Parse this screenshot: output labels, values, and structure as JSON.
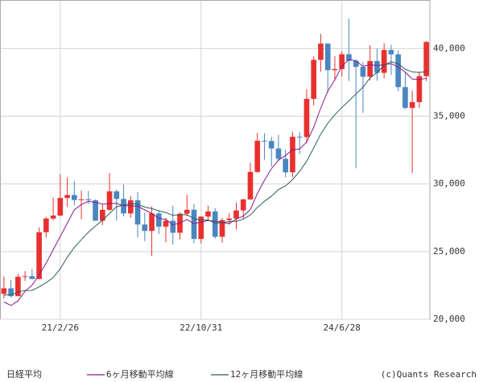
{
  "chart_data": {
    "type": "candlestick",
    "categories": [
      null,
      null,
      null,
      null,
      null,
      null,
      null,
      null,
      "21/2/26",
      null,
      null,
      null,
      null,
      null,
      null,
      null,
      null,
      null,
      null,
      null,
      null,
      null,
      null,
      null,
      null,
      null,
      null,
      null,
      "22/10/31",
      null,
      null,
      null,
      null,
      null,
      null,
      null,
      null,
      null,
      null,
      null,
      null,
      null,
      null,
      null,
      null,
      null,
      null,
      null,
      "24/6/28",
      null,
      null,
      null,
      null,
      null,
      null,
      null,
      null,
      null,
      null,
      null,
      null
    ],
    "series": [
      {
        "name": "日経平均",
        "up_color": "#e8312f",
        "down_color": "#4a86c0",
        "open": [
          21878,
          22288,
          21710,
          23139,
          23185,
          22977,
          26433,
          27444,
          27663,
          28966,
          29178,
          28812,
          28860,
          28791,
          27283,
          28089,
          29452,
          28892,
          27821,
          28791,
          27001,
          26526,
          27821,
          26847,
          27279,
          26393,
          27801,
          28091,
          25937,
          27587,
          27968,
          26094,
          27327,
          27445,
          28041,
          28856,
          30887,
          33189,
          33172,
          32619,
          31857,
          30858,
          33486,
          33464,
          36286,
          39166,
          40369,
          38405,
          38487,
          39583,
          39101,
          38647,
          37919,
          39081,
          38208,
          39894,
          39572,
          37155,
          35617,
          36045,
          37965
        ],
        "high": [
          23178,
          22900,
          23338,
          23559,
          23725,
          26800,
          27568,
          28979,
          30714,
          30485,
          30208,
          29518,
          29480,
          28852,
          28500,
          30795,
          29600,
          29960,
          29121,
          29388,
          27880,
          28338,
          28000,
          27500,
          28389,
          27900,
          29222,
          28500,
          27600,
          28383,
          28200,
          27502,
          27821,
          28624,
          28900,
          31561,
          33772,
          33753,
          33488,
          33634,
          32533,
          33853,
          33853,
          36984,
          39426,
          41088,
          40400,
          39437,
          39794,
          42224,
          39200,
          39000,
          40257,
          40000,
          40398,
          40288,
          39864,
          38220,
          36900,
          38300,
          40550
        ],
        "low": [
          21530,
          21600,
          21700,
          22834,
          22948,
          22948,
          26034,
          27300,
          27600,
          28308,
          28419,
          27385,
          28500,
          27272,
          26954,
          28000,
          27293,
          27600,
          27500,
          26044,
          25775,
          24681,
          26300,
          25688,
          25520,
          25900,
          27600,
          25621,
          25600,
          27300,
          25953,
          25661,
          27000,
          26632,
          27450,
          28830,
          30800,
          31791,
          31275,
          31674,
          30487,
          30500,
          32205,
          33000,
          35800,
          38271,
          36733,
          37617,
          37950,
          37611,
          31156,
          35247,
          37651,
          37626,
          37800,
          38055,
          36857,
          35500,
          30792,
          35600,
          37600
        ],
        "close": [
          22288,
          21710,
          23139,
          23185,
          22977,
          26433,
          27444,
          27663,
          28966,
          29178,
          28812,
          28860,
          28791,
          27283,
          28089,
          29452,
          28892,
          27821,
          28791,
          27001,
          26526,
          27821,
          26847,
          27279,
          26393,
          27801,
          28091,
          25937,
          27587,
          27968,
          26094,
          27327,
          27445,
          28041,
          28856,
          30887,
          33189,
          33172,
          32619,
          31857,
          30858,
          33486,
          33464,
          36286,
          39166,
          40369,
          38405,
          38487,
          39583,
          39101,
          38647,
          37919,
          39081,
          38208,
          39894,
          39572,
          37155,
          35617,
          36045,
          37965,
          40487
        ]
      },
      {
        "name": "6ヶ月移動平均線",
        "color": "#8b1a8b",
        "values": [
          21270,
          21021,
          21354,
          22065,
          22529,
          23289,
          24148,
          25140,
          26111,
          27110,
          28083,
          28487,
          28712,
          28648,
          28502,
          28548,
          28561,
          28388,
          28388,
          28341,
          28081,
          27809,
          27468,
          27378,
          26978,
          27111,
          27372,
          27058,
          27181,
          27296,
          27246,
          27167,
          27060,
          27410,
          27622,
          28108,
          29291,
          30265,
          31127,
          31763,
          32097,
          32530,
          32576,
          33095,
          34186,
          35605,
          36863,
          37696,
          38716,
          39185,
          39099,
          38690,
          38803,
          38757,
          38808,
          38887,
          38638,
          38255,
          37749,
          37708,
          37807
        ]
      },
      {
        "name": "12ヶ月移動平均線",
        "color": "#2e5e5e",
        "values": [
          21790,
          21806,
          22009,
          22128,
          22132,
          22394,
          22709,
          23081,
          23733,
          24588,
          25306,
          25888,
          26430,
          26894,
          27307,
          27829,
          28322,
          28438,
          28550,
          28495,
          28291,
          28178,
          28015,
          27883,
          27683,
          27726,
          27726,
          27433,
          27325,
          27337,
          27112,
          27139,
          27216,
          27234,
          27402,
          27702,
          28269,
          28716,
          29094,
          29587,
          29859,
          30319,
          30933,
          31680,
          32657,
          33684,
          34480,
          35113,
          35646,
          36140,
          36642,
          37148,
          37833,
          38226,
          38762,
          39036,
          38868,
          38472,
          38276,
          38232,
          38308
        ]
      }
    ],
    "ylim": [
      20000,
      43560
    ],
    "yticks": [
      {
        "value": 20000,
        "label": "20,000"
      },
      {
        "value": 25000,
        "label": "25,000"
      },
      {
        "value": 30000,
        "label": "30,000"
      },
      {
        "value": 35000,
        "label": "35,000"
      },
      {
        "value": 40000,
        "label": "40,000"
      }
    ],
    "grid": true,
    "credit": "(c)Quants Research"
  }
}
